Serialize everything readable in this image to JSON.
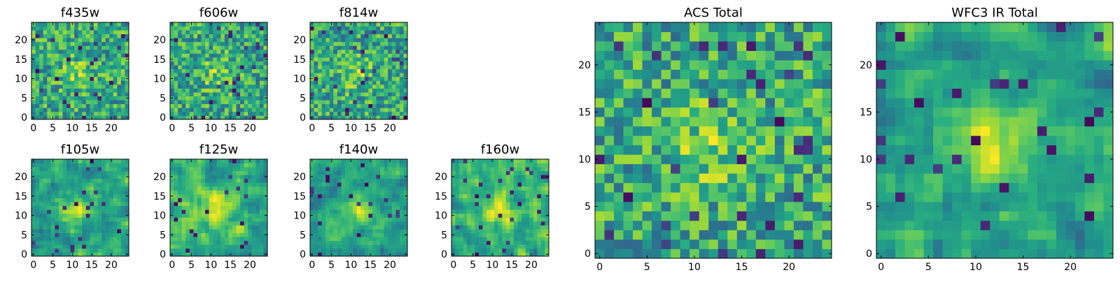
{
  "chart_data": [
    {
      "type": "heatmap",
      "title": "f435w",
      "xticks": [
        "0",
        "5",
        "10",
        "15",
        "20"
      ],
      "yticks": [
        "0",
        "5",
        "10",
        "15",
        "20"
      ],
      "xlim": [
        -0.5,
        24.5
      ],
      "ylim": [
        -0.5,
        24.5
      ],
      "grid_size": 25,
      "colormap": "viridis",
      "pattern": "noise",
      "seed": 11
    },
    {
      "type": "heatmap",
      "title": "f606w",
      "xticks": [
        "0",
        "5",
        "10",
        "15",
        "20"
      ],
      "yticks": [
        "0",
        "5",
        "10",
        "15",
        "20"
      ],
      "xlim": [
        -0.5,
        24.5
      ],
      "ylim": [
        -0.5,
        24.5
      ],
      "grid_size": 25,
      "colormap": "viridis",
      "pattern": "noise",
      "seed": 23
    },
    {
      "type": "heatmap",
      "title": "f814w",
      "xticks": [
        "0",
        "5",
        "10",
        "15",
        "20"
      ],
      "yticks": [
        "0",
        "5",
        "10",
        "15",
        "20"
      ],
      "xlim": [
        -0.5,
        24.5
      ],
      "ylim": [
        -0.5,
        24.5
      ],
      "grid_size": 25,
      "colormap": "viridis",
      "pattern": "noise",
      "seed": 37
    },
    {
      "type": "heatmap",
      "title": "f105w",
      "xticks": [
        "0",
        "5",
        "10",
        "15",
        "20"
      ],
      "yticks": [
        "0",
        "5",
        "10",
        "15",
        "20"
      ],
      "xlim": [
        -0.5,
        24.5
      ],
      "ylim": [
        -0.5,
        24.5
      ],
      "grid_size": 25,
      "colormap": "viridis",
      "pattern": "smooth",
      "seed": 41
    },
    {
      "type": "heatmap",
      "title": "f125w",
      "xticks": [
        "0",
        "5",
        "10",
        "15",
        "20"
      ],
      "yticks": [
        "0",
        "5",
        "10",
        "15",
        "20"
      ],
      "xlim": [
        -0.5,
        24.5
      ],
      "ylim": [
        -0.5,
        24.5
      ],
      "grid_size": 25,
      "colormap": "viridis",
      "pattern": "smooth",
      "seed": 53
    },
    {
      "type": "heatmap",
      "title": "f140w",
      "xticks": [
        "0",
        "5",
        "10",
        "15",
        "20"
      ],
      "yticks": [
        "0",
        "5",
        "10",
        "15",
        "20"
      ],
      "xlim": [
        -0.5,
        24.5
      ],
      "ylim": [
        -0.5,
        24.5
      ],
      "grid_size": 25,
      "colormap": "viridis",
      "pattern": "smooth",
      "seed": 67
    },
    {
      "type": "heatmap",
      "title": "f160w",
      "xticks": [
        "0",
        "5",
        "10",
        "15",
        "20"
      ],
      "yticks": [
        "0",
        "5",
        "10",
        "15",
        "20"
      ],
      "xlim": [
        -0.5,
        24.5
      ],
      "ylim": [
        -0.5,
        24.5
      ],
      "grid_size": 25,
      "colormap": "viridis",
      "pattern": "smooth",
      "seed": 79
    },
    {
      "type": "heatmap",
      "title": "ACS Total",
      "xticks": [
        "0",
        "5",
        "10",
        "15",
        "20"
      ],
      "yticks": [
        "0",
        "5",
        "10",
        "15",
        "20"
      ],
      "xlim": [
        -0.5,
        24.5
      ],
      "ylim": [
        -0.5,
        24.5
      ],
      "grid_size": 25,
      "colormap": "viridis",
      "pattern": "noise",
      "seed": 97
    },
    {
      "type": "heatmap",
      "title": "WFC3 IR Total",
      "xticks": [
        "0",
        "5",
        "10",
        "15",
        "20"
      ],
      "yticks": [
        "0",
        "5",
        "10",
        "15",
        "20"
      ],
      "xlim": [
        -0.5,
        24.5
      ],
      "ylim": [
        -0.5,
        24.5
      ],
      "grid_size": 25,
      "colormap": "viridis",
      "pattern": "smooth",
      "seed": 113
    }
  ]
}
